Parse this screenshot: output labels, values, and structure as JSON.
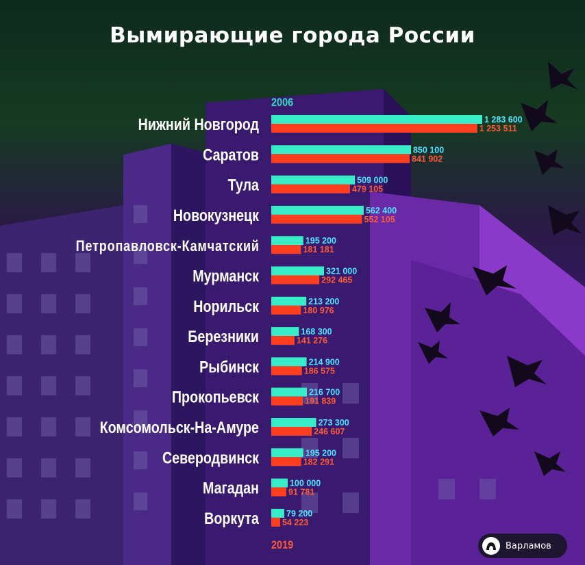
{
  "title": "Вымирающие города России",
  "brand": {
    "name": "Варламов"
  },
  "colors": {
    "series2006": "#38ecc8",
    "series2019": "#ff3d1f",
    "label2006": "#4de6ff",
    "label2019": "#ff5a36"
  },
  "chart_data": {
    "type": "bar",
    "orientation": "horizontal",
    "categories": [
      "Нижний Новгород",
      "Саратов",
      "Тула",
      "Новокузнецк",
      "Петропавловск-Камчатский",
      "Мурманск",
      "Норильск",
      "Березники",
      "Рыбинск",
      "Прокопьевск",
      "Комсомольск-На-Амуре",
      "Северодвинск",
      "Магадан",
      "Воркута"
    ],
    "series": [
      {
        "name": "2006",
        "values": [
          1283600,
          850100,
          509000,
          562400,
          195200,
          321000,
          213200,
          168300,
          214900,
          216700,
          273300,
          195200,
          100000,
          79200
        ],
        "labels": [
          "1 283 600",
          "850 100",
          "509 000",
          "562 400",
          "195 200",
          "321 000",
          "213 200",
          "168 300",
          "214 900",
          "216 700",
          "273 300",
          "195 200",
          "100 000",
          "79 200"
        ]
      },
      {
        "name": "2019",
        "values": [
          1253511,
          841902,
          479105,
          552105,
          181181,
          292465,
          180976,
          141276,
          186575,
          191839,
          246607,
          182291,
          91781,
          54223
        ],
        "labels": [
          "1 253 511",
          "841 902",
          "479 105",
          "552 105",
          "181 181",
          "292 465",
          "180 976",
          "141 276",
          "186 575",
          "191 839",
          "246 607",
          "182 291",
          "91 781",
          "54 223"
        ]
      }
    ],
    "legend": "top-and-bottom-of-bars"
  }
}
